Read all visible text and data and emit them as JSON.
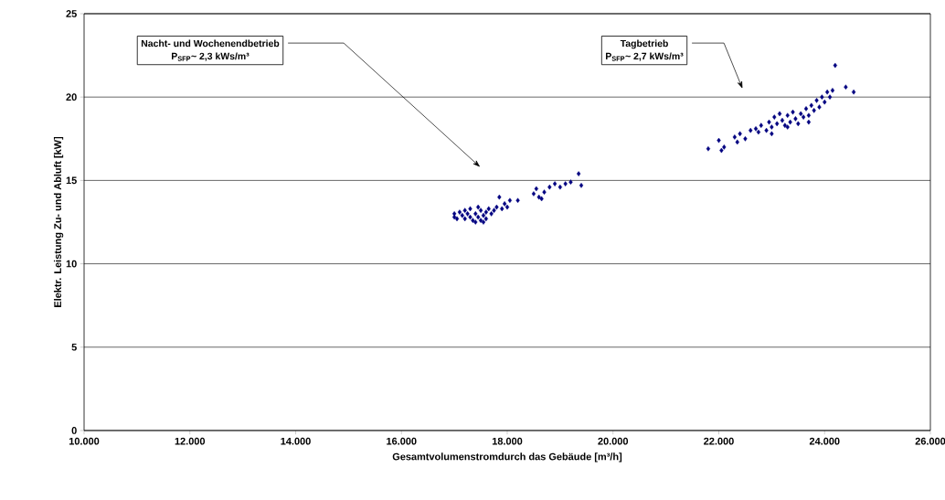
{
  "chart_data": {
    "type": "scatter",
    "xlabel": "Gesamtvolumenstromdurch das Gebäude [m³/h]",
    "ylabel": "Elektr. Leistung Zu- und Abluft [kW]",
    "x": [
      17000,
      17000,
      17050,
      17100,
      17150,
      17200,
      17200,
      17250,
      17300,
      17300,
      17350,
      17400,
      17400,
      17450,
      17450,
      17500,
      17500,
      17550,
      17550,
      17600,
      17600,
      17650,
      17700,
      17750,
      17800,
      17850,
      17900,
      17950,
      18000,
      18050,
      18200,
      18500,
      18550,
      18600,
      18650,
      18700,
      18800,
      18900,
      19000,
      19100,
      19200,
      19350,
      19400,
      21800,
      22000,
      22050,
      22100,
      22300,
      22350,
      22400,
      22500,
      22600,
      22700,
      22750,
      22800,
      22900,
      22950,
      23000,
      23000,
      23050,
      23100,
      23150,
      23200,
      23250,
      23300,
      23300,
      23350,
      23400,
      23450,
      23500,
      23550,
      23600,
      23650,
      23700,
      23700,
      23750,
      23800,
      23850,
      23900,
      23950,
      24000,
      24050,
      24100,
      24150,
      24200,
      24400,
      24550
    ],
    "values": [
      13.0,
      12.8,
      12.7,
      13.1,
      12.9,
      13.2,
      12.7,
      13.0,
      12.8,
      13.3,
      12.6,
      13.0,
      12.5,
      13.4,
      12.8,
      12.6,
      13.2,
      12.9,
      12.5,
      13.1,
      12.7,
      13.3,
      13.0,
      13.2,
      13.4,
      14.0,
      13.3,
      13.6,
      13.4,
      13.8,
      13.8,
      14.2,
      14.5,
      14.0,
      13.9,
      14.3,
      14.6,
      14.8,
      14.6,
      14.8,
      14.9,
      15.4,
      14.7,
      16.9,
      17.4,
      16.8,
      17.0,
      17.6,
      17.3,
      17.8,
      17.5,
      18.0,
      18.1,
      17.9,
      18.3,
      18.0,
      18.5,
      18.2,
      17.8,
      18.8,
      18.4,
      19.0,
      18.6,
      18.3,
      18.9,
      18.2,
      18.5,
      19.1,
      18.7,
      18.4,
      19.0,
      18.8,
      19.3,
      18.9,
      18.5,
      19.5,
      19.2,
      19.8,
      19.4,
      20.0,
      19.7,
      20.3,
      20.0,
      20.4,
      21.9,
      20.6,
      20.3
    ],
    "color": "#000080",
    "marker": "diamond",
    "grid": "y",
    "xlim": [
      10000,
      26000
    ],
    "xticks": [
      {
        "value": 10000,
        "label": "10.000"
      },
      {
        "value": 12000,
        "label": "12.000"
      },
      {
        "value": 14000,
        "label": "14.000"
      },
      {
        "value": 16000,
        "label": "16.000"
      },
      {
        "value": 18000,
        "label": "18.000"
      },
      {
        "value": 20000,
        "label": "20.000"
      },
      {
        "value": 22000,
        "label": "22.000"
      },
      {
        "value": 24000,
        "label": "24.000"
      },
      {
        "value": 26000,
        "label": "26.000"
      }
    ],
    "ylim": [
      0,
      25
    ],
    "yticks": [
      0,
      5,
      10,
      15,
      20,
      25
    ],
    "annotations": [
      "Nacht- und Wochenendbetrieb",
      "P$_{SFP}$~ 2,3 kWs/m³",
      "Tagbetrieb",
      "P$_{SFP}$~ 2,7 kWs/m³"
    ]
  }
}
